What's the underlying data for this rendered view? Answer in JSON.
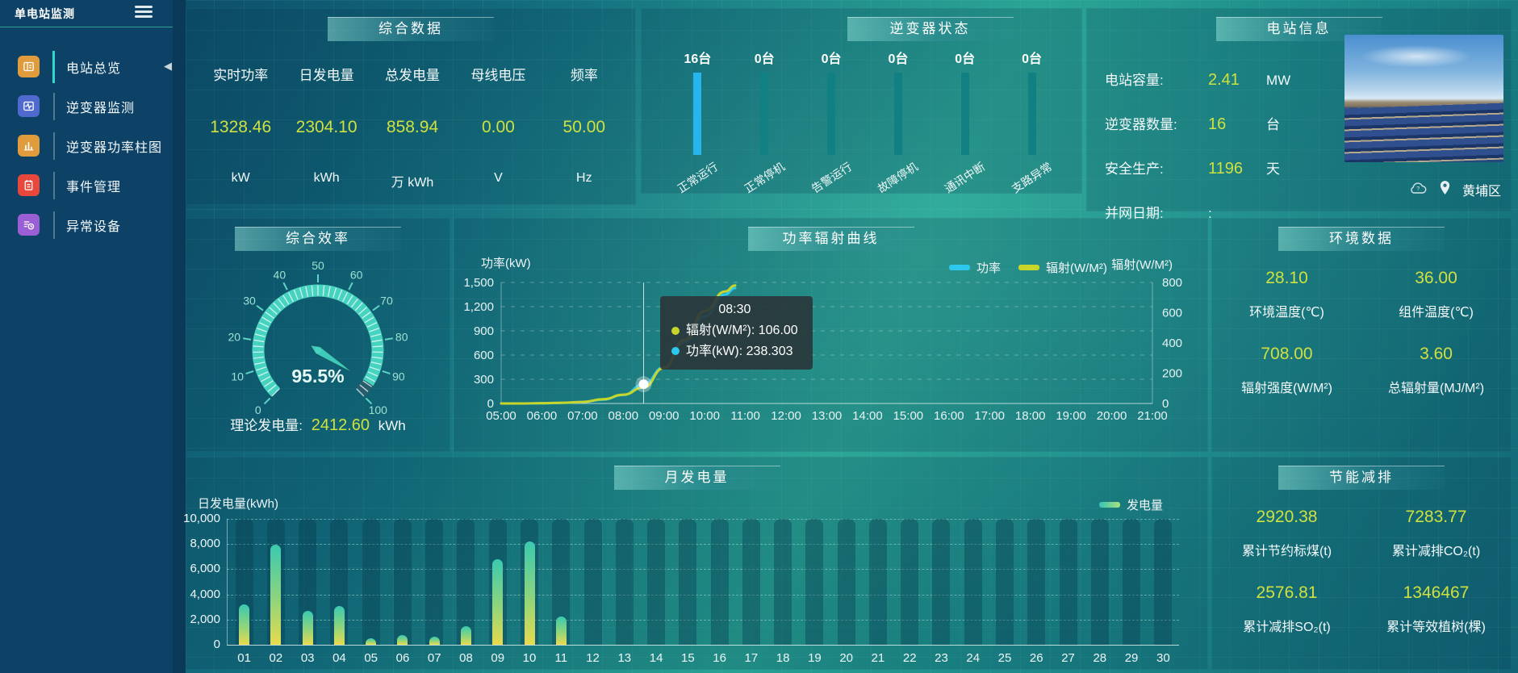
{
  "app": {
    "title": "单电站监测"
  },
  "colors": {
    "accent_yellow": "#cfe13f",
    "accent_cyan": "#2ec7ee",
    "accent_teal": "#46d3c0",
    "highlight_bar_blue": "#25b6ef",
    "status_bar_teal": "#118083"
  },
  "sidebar": {
    "title": "单电站监测",
    "items": [
      {
        "label": "电站总览",
        "icon": "overview-icon",
        "color": "#e09c3c",
        "active": true
      },
      {
        "label": "逆变器监测",
        "icon": "inverter-monitor-icon",
        "color": "#5069cf",
        "active": false
      },
      {
        "label": "逆变器功率柱图",
        "icon": "power-bar-icon",
        "color": "#e09c3c",
        "active": false
      },
      {
        "label": "事件管理",
        "icon": "event-manage-icon",
        "color": "#e8483b",
        "active": false
      },
      {
        "label": "异常设备",
        "icon": "abnormal-device-icon",
        "color": "#9a5fd4",
        "active": false
      }
    ]
  },
  "panels": {
    "summary": {
      "title": "综合数据",
      "metrics": [
        {
          "label": "实时功率",
          "value": "1328.46",
          "unit": "kW"
        },
        {
          "label": "日发电量",
          "value": "2304.10",
          "unit": "kWh"
        },
        {
          "label": "总发电量",
          "value": "858.94",
          "unit": "万 kWh"
        },
        {
          "label": "母线电压",
          "value": "0.00",
          "unit": "V"
        },
        {
          "label": "频率",
          "value": "50.00",
          "unit": "Hz"
        }
      ]
    },
    "inverter_status": {
      "title": "逆变器状态",
      "count_suffix": "台",
      "items": [
        {
          "label": "正常运行",
          "count": "16",
          "highlight": true
        },
        {
          "label": "正常停机",
          "count": "0",
          "highlight": false
        },
        {
          "label": "告警运行",
          "count": "0",
          "highlight": false
        },
        {
          "label": "故障停机",
          "count": "0",
          "highlight": false
        },
        {
          "label": "通讯中断",
          "count": "0",
          "highlight": false
        },
        {
          "label": "支路异常",
          "count": "0",
          "highlight": false
        }
      ]
    },
    "station_info": {
      "title": "电站信息",
      "rows": [
        {
          "label": "电站容量:",
          "value": "2.41",
          "unit": "MW",
          "muted": false
        },
        {
          "label": "逆变器数量:",
          "value": "16",
          "unit": "台",
          "muted": false
        },
        {
          "label": "安全生产:",
          "value": "1196",
          "unit": "天",
          "muted": false
        },
        {
          "label": "并网日期:",
          "value": ":",
          "unit": "",
          "muted": true
        }
      ],
      "location": "黄埔区"
    },
    "efficiency": {
      "title": "综合效率",
      "theory_label": "理论发电量:",
      "theory_value": "2412.60",
      "theory_unit": "kWh"
    },
    "power_radiation": {
      "title": "功率辐射曲线"
    },
    "environment": {
      "title": "环境数据",
      "metrics": [
        {
          "value": "28.10",
          "label": "环境温度(℃)"
        },
        {
          "value": "36.00",
          "label": "组件温度(℃)"
        },
        {
          "value": "708.00",
          "label": "辐射强度(W/M²)"
        },
        {
          "value": "3.60",
          "label": "总辐射量(MJ/M²)"
        }
      ]
    },
    "monthly": {
      "title": "月发电量"
    },
    "energy_saving": {
      "title": "节能减排",
      "metrics": [
        {
          "value": "2920.38",
          "label": "累计节约标煤(t)"
        },
        {
          "value": "7283.77",
          "label": "累计减排CO₂(t)"
        },
        {
          "value": "2576.81",
          "label": "累计减排SO₂(t)"
        },
        {
          "value": "1346467",
          "label": "累计等效植树(棵)"
        }
      ]
    }
  },
  "chart_data": [
    {
      "id": "efficiency_gauge",
      "type": "gauge",
      "title": "综合效率",
      "min": 0,
      "max": 100,
      "tick_step": 10,
      "value": 95.5,
      "value_label": "95.5%",
      "color": "#46d3c0"
    },
    {
      "id": "power_radiation_curve",
      "type": "line",
      "title": "功率辐射曲线",
      "x": [
        "05:00",
        "05:30",
        "06:00",
        "06:30",
        "07:00",
        "07:30",
        "08:00",
        "08:30",
        "09:00",
        "09:30",
        "10:00",
        "10:30",
        "10:45"
      ],
      "x_axis_ticks": [
        "05:00",
        "06:00",
        "07:00",
        "08:00",
        "09:00",
        "10:00",
        "11:00",
        "12:00",
        "13:00",
        "14:00",
        "15:00",
        "16:00",
        "17:00",
        "18:00",
        "19:00",
        "20:00",
        "21:00"
      ],
      "x_range": [
        "05:00",
        "21:00"
      ],
      "series": [
        {
          "name": "功率",
          "color": "#2ec7ee",
          "axis": "left",
          "values": [
            0,
            0,
            3,
            8,
            18,
            48,
            106,
            238.3,
            450,
            760,
            1080,
            1350,
            1430
          ]
        },
        {
          "name": "辐射(W/M²)",
          "color": "#c8d62b",
          "axis": "right",
          "values": [
            0,
            0,
            2,
            5,
            10,
            28,
            58,
            106,
            235,
            420,
            610,
            740,
            780
          ]
        }
      ],
      "left_axis": {
        "label": "功率(kW)",
        "min": 0,
        "max": 1500,
        "ticks": [
          "0",
          "300",
          "600",
          "900",
          "1,200",
          "1,500"
        ]
      },
      "right_axis": {
        "label": "辐射(W/M²)",
        "min": 0,
        "max": 800,
        "ticks": [
          "0",
          "200",
          "400",
          "600",
          "800"
        ]
      },
      "legend": [
        "功率",
        "辐射(W/M²)"
      ],
      "legend_position": "top-center-right",
      "grid": "horizontal-dashed",
      "crosshair_x": "08:30",
      "tooltip": {
        "time": "08:30",
        "rows": [
          {
            "color": "#c8d62b",
            "text": "辐射(W/M²): 106.00"
          },
          {
            "color": "#2ec7ee",
            "text": "功率(kW): 238.303"
          }
        ]
      }
    },
    {
      "id": "monthly_generation",
      "type": "bar",
      "title": "月发电量",
      "ylabel": "日发电量(kWh)",
      "categories": [
        "01",
        "02",
        "03",
        "04",
        "05",
        "06",
        "07",
        "08",
        "09",
        "10",
        "11",
        "12",
        "13",
        "14",
        "15",
        "16",
        "17",
        "18",
        "19",
        "20",
        "21",
        "22",
        "23",
        "24",
        "25",
        "26",
        "27",
        "28",
        "29",
        "30"
      ],
      "values": [
        3200,
        7950,
        2700,
        3100,
        500,
        750,
        650,
        1450,
        6800,
        8200,
        2250,
        0,
        0,
        0,
        0,
        0,
        0,
        0,
        0,
        0,
        0,
        0,
        0,
        0,
        0,
        0,
        0,
        0,
        0,
        0
      ],
      "ylim": [
        0,
        10000
      ],
      "y_ticks": [
        "0",
        "2,000",
        "4,000",
        "6,000",
        "8,000",
        "10,000"
      ],
      "legend": "发电量",
      "legend_position": "top-right",
      "bar_gradient": [
        "#3ac9b0",
        "#e8da4e"
      ]
    }
  ]
}
